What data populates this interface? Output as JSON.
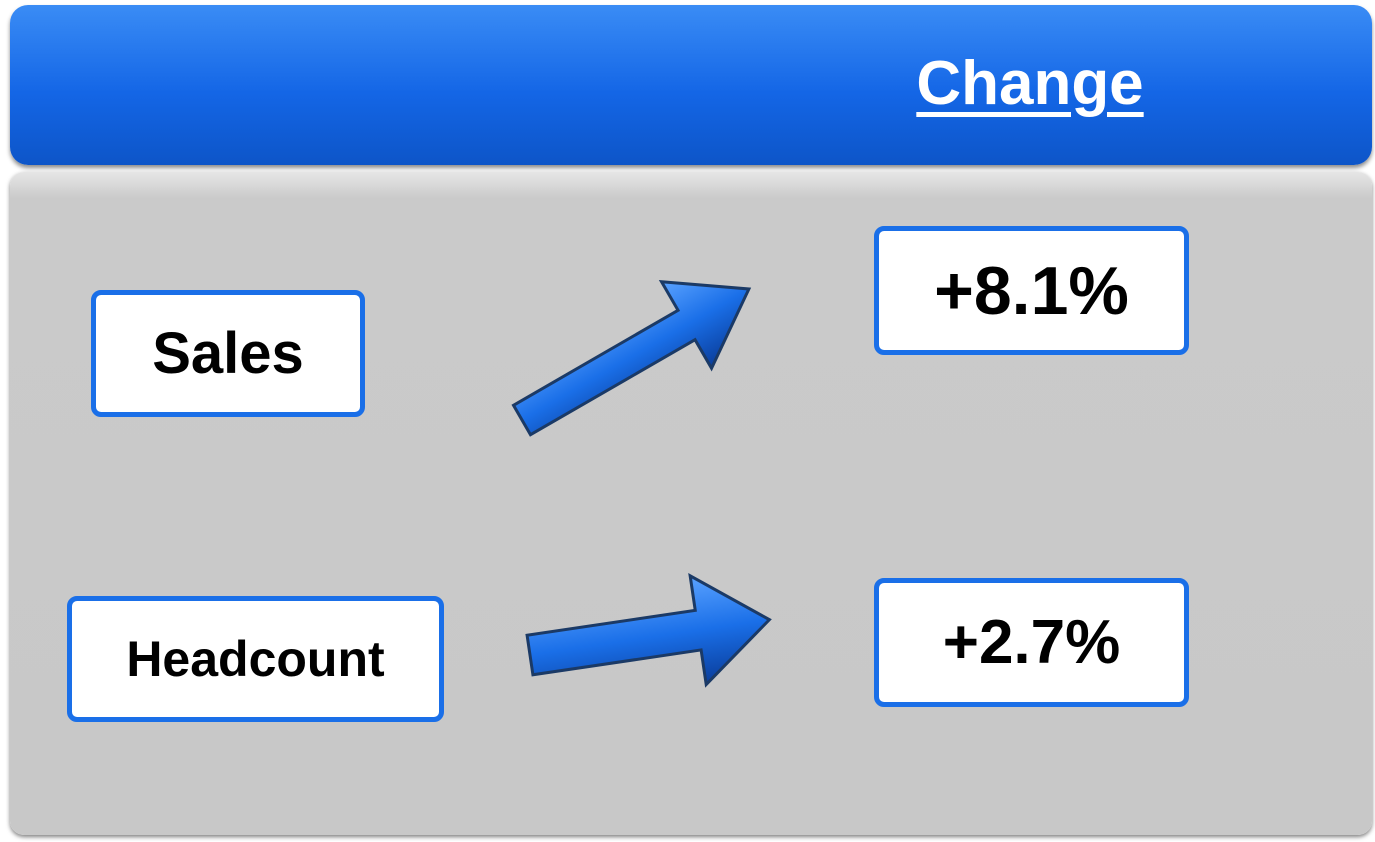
{
  "header": {
    "title": "Change"
  },
  "rows": [
    {
      "label": "Sales",
      "change": "+8.1%"
    },
    {
      "label": "Headcount",
      "change": "+2.7%"
    }
  ]
}
